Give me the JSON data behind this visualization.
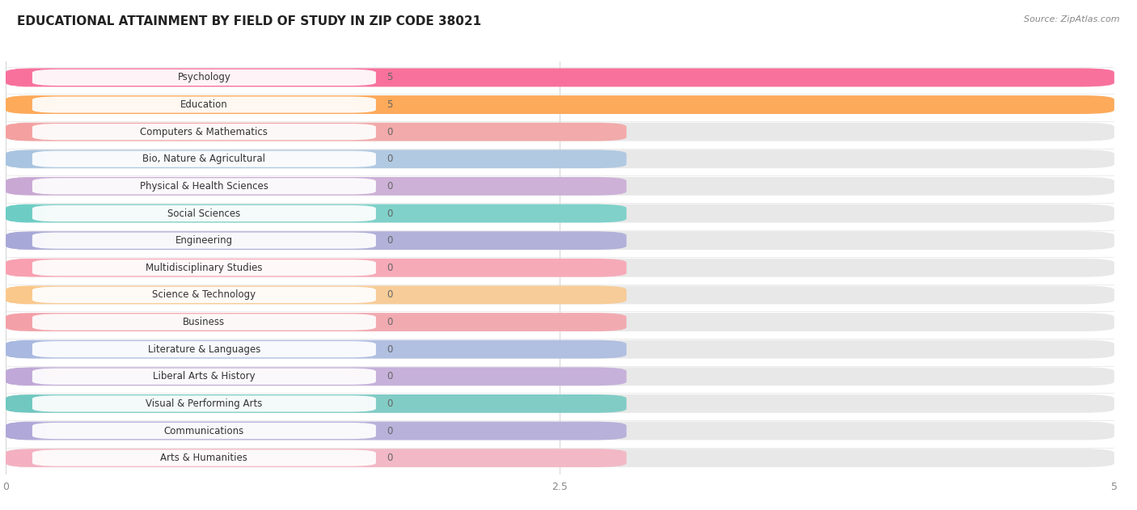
{
  "title": "EDUCATIONAL ATTAINMENT BY FIELD OF STUDY IN ZIP CODE 38021",
  "source": "Source: ZipAtlas.com",
  "categories": [
    "Psychology",
    "Education",
    "Computers & Mathematics",
    "Bio, Nature & Agricultural",
    "Physical & Health Sciences",
    "Social Sciences",
    "Engineering",
    "Multidisciplinary Studies",
    "Science & Technology",
    "Business",
    "Literature & Languages",
    "Liberal Arts & History",
    "Visual & Performing Arts",
    "Communications",
    "Arts & Humanities"
  ],
  "values": [
    5,
    5,
    0,
    0,
    0,
    0,
    0,
    0,
    0,
    0,
    0,
    0,
    0,
    0,
    0
  ],
  "bar_colors": [
    "#F8719D",
    "#FDAA5A",
    "#F4A0A0",
    "#A8C4E0",
    "#C9A8D4",
    "#6DCDC4",
    "#A8A8D8",
    "#F9A0B0",
    "#FAC88A",
    "#F4A0A8",
    "#A8B8E0",
    "#C0A8D8",
    "#70C8C0",
    "#B0A8D8",
    "#F4B0C0"
  ],
  "xlim": [
    0,
    5
  ],
  "xticks": [
    0,
    2.5,
    5
  ],
  "background_color": "#f5f5f5",
  "bar_background_color": "#e8e8e8",
  "title_fontsize": 11,
  "label_fontsize": 8.5,
  "value_fontsize": 8.5
}
